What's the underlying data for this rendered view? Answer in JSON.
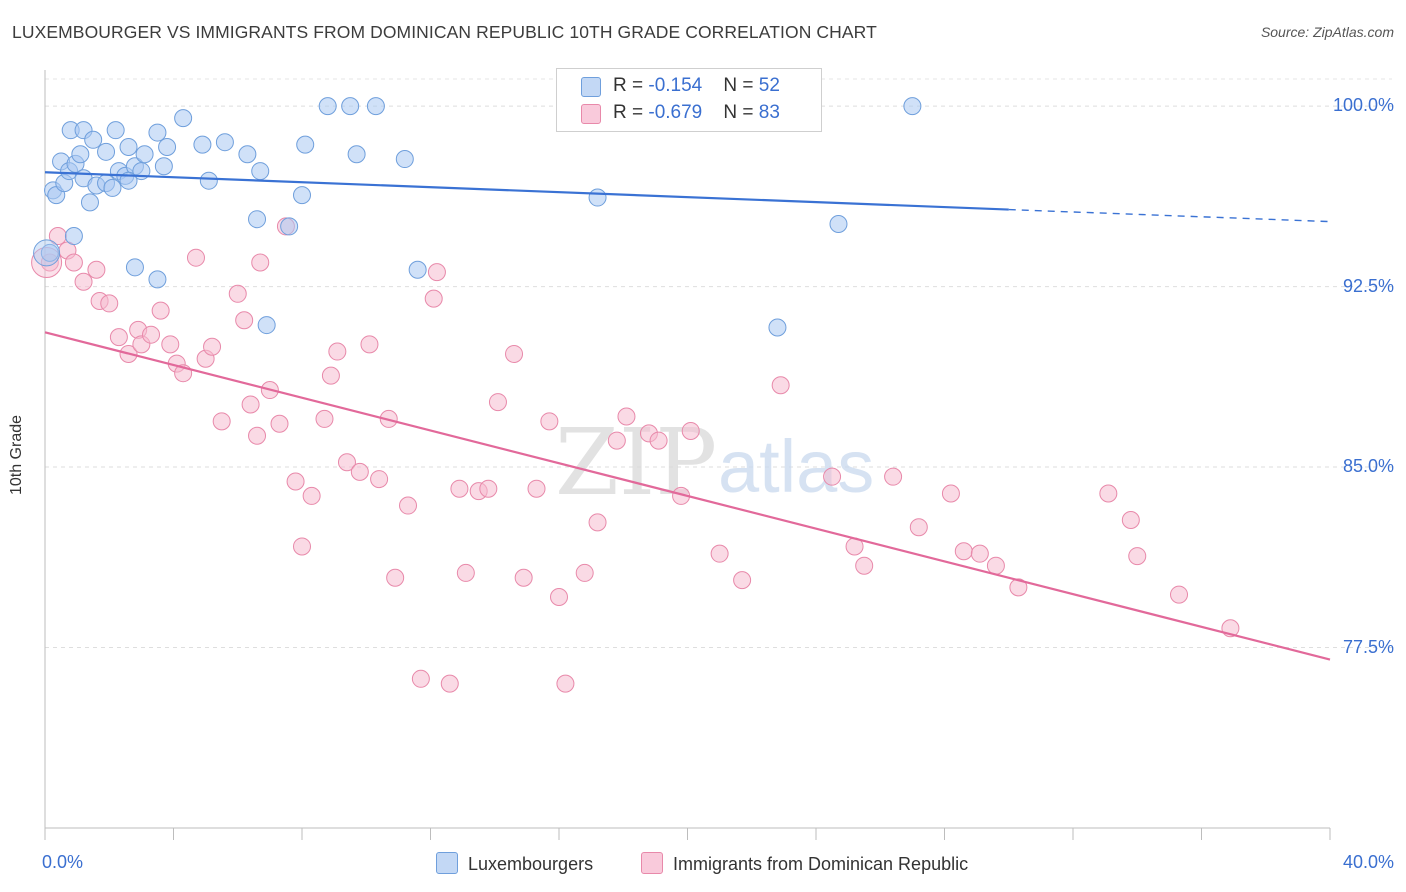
{
  "title": "LUXEMBOURGER VS IMMIGRANTS FROM DOMINICAN REPUBLIC 10TH GRADE CORRELATION CHART",
  "source": "Source: ZipAtlas.com",
  "watermark": {
    "zip": "ZIP",
    "atlas": "atlas"
  },
  "legend_top": {
    "rows": [
      {
        "r_label": "R = ",
        "r_value": "-0.154",
        "n_label": "N = ",
        "n_value": "52"
      },
      {
        "r_label": "R = ",
        "r_value": "-0.679",
        "n_label": "N = ",
        "n_value": "83"
      }
    ]
  },
  "bottom_legend": {
    "series1": "Luxembourgers",
    "series2": "Immigrants from Dominican Republic"
  },
  "colors": {
    "blue_fill": "#aac9f2",
    "blue_stroke": "#6f9fdc",
    "blue_line": "#3a72d4",
    "pink_fill": "#f6bcd0",
    "pink_stroke": "#e889aa",
    "pink_line": "#e2699a",
    "accent_text": "#3a6fd0"
  },
  "chart_data": {
    "type": "scatter",
    "title": "LUXEMBOURGER VS IMMIGRANTS FROM DOMINICAN REPUBLIC 10TH GRADE CORRELATION CHART",
    "xlabel": "",
    "ylabel": "10th Grade",
    "xlim": [
      0,
      40
    ],
    "ylim": [
      70,
      101.5
    ],
    "x_tick_labels": [
      "0.0%",
      "40.0%"
    ],
    "y_ticks": [
      77.5,
      85.0,
      92.5,
      100.0
    ],
    "y_tick_labels": [
      "77.5%",
      "85.0%",
      "92.5%",
      "100.0%"
    ],
    "grid": true,
    "legend_position": "top-center",
    "series": [
      {
        "name": "Luxembourgers",
        "R": -0.154,
        "N": 52,
        "trend": {
          "x0": 0,
          "y0": 97.25,
          "x1": 30,
          "y1": 95.7,
          "dash_to_x": 40,
          "dash_to_y": 95.2
        },
        "points": [
          [
            0.25,
            96.5
          ],
          [
            0.35,
            96.3
          ],
          [
            0.5,
            97.7
          ],
          [
            0.6,
            96.8
          ],
          [
            0.75,
            97.3
          ],
          [
            0.95,
            97.6
          ],
          [
            1.1,
            98.0
          ],
          [
            1.2,
            97.0
          ],
          [
            1.4,
            96.0
          ],
          [
            1.6,
            96.7
          ],
          [
            1.9,
            96.8
          ],
          [
            2.1,
            96.6
          ],
          [
            2.3,
            97.3
          ],
          [
            2.5,
            97.1
          ],
          [
            2.8,
            97.5
          ],
          [
            3.0,
            97.3
          ],
          [
            0.8,
            99.0
          ],
          [
            1.2,
            99.0
          ],
          [
            1.5,
            98.6
          ],
          [
            1.9,
            98.1
          ],
          [
            2.2,
            99.0
          ],
          [
            2.6,
            98.3
          ],
          [
            3.1,
            98.0
          ],
          [
            3.5,
            98.9
          ],
          [
            3.8,
            98.3
          ],
          [
            4.3,
            99.5
          ],
          [
            5.1,
            96.9
          ],
          [
            6.7,
            97.3
          ],
          [
            8.0,
            96.3
          ],
          [
            9.7,
            98.0
          ],
          [
            8.8,
            100.0
          ],
          [
            9.5,
            100.0
          ],
          [
            10.3,
            100.0
          ],
          [
            11.2,
            97.8
          ],
          [
            27.0,
            100.0
          ],
          [
            0.15,
            93.9
          ],
          [
            0.9,
            94.6
          ],
          [
            2.8,
            93.3
          ],
          [
            3.5,
            92.8
          ],
          [
            6.6,
            95.3
          ],
          [
            7.6,
            95.0
          ],
          [
            11.6,
            93.2
          ],
          [
            17.2,
            96.2
          ],
          [
            22.8,
            90.8
          ],
          [
            24.7,
            95.1
          ],
          [
            6.9,
            90.9
          ],
          [
            4.9,
            98.4
          ],
          [
            5.6,
            98.5
          ],
          [
            8.1,
            98.4
          ],
          [
            6.3,
            98.0
          ],
          [
            2.6,
            96.9
          ],
          [
            3.7,
            97.5
          ]
        ]
      },
      {
        "name": "Immigrants from Dominican Republic",
        "R": -0.679,
        "N": 83,
        "trend": {
          "x0": 0,
          "y0": 90.6,
          "x1": 40,
          "y1": 77.0
        },
        "points": [
          [
            0.15,
            93.5
          ],
          [
            0.4,
            94.6
          ],
          [
            0.7,
            94.0
          ],
          [
            0.9,
            93.5
          ],
          [
            1.2,
            92.7
          ],
          [
            1.6,
            93.2
          ],
          [
            1.7,
            91.9
          ],
          [
            2.0,
            91.8
          ],
          [
            2.3,
            90.4
          ],
          [
            2.6,
            89.7
          ],
          [
            2.9,
            90.7
          ],
          [
            3.0,
            90.1
          ],
          [
            3.3,
            90.5
          ],
          [
            3.6,
            91.5
          ],
          [
            3.9,
            90.1
          ],
          [
            4.1,
            89.3
          ],
          [
            4.3,
            88.9
          ],
          [
            4.7,
            93.7
          ],
          [
            5.0,
            89.5
          ],
          [
            5.2,
            90.0
          ],
          [
            5.5,
            86.9
          ],
          [
            6.0,
            92.2
          ],
          [
            6.2,
            91.1
          ],
          [
            6.4,
            87.6
          ],
          [
            6.6,
            86.3
          ],
          [
            6.7,
            93.5
          ],
          [
            7.0,
            88.2
          ],
          [
            7.3,
            86.8
          ],
          [
            7.5,
            95.0
          ],
          [
            7.8,
            84.4
          ],
          [
            8.0,
            81.7
          ],
          [
            8.3,
            83.8
          ],
          [
            8.7,
            87.0
          ],
          [
            8.9,
            88.8
          ],
          [
            9.1,
            89.8
          ],
          [
            9.4,
            85.2
          ],
          [
            9.8,
            84.8
          ],
          [
            10.1,
            90.1
          ],
          [
            10.4,
            84.5
          ],
          [
            10.7,
            87.0
          ],
          [
            10.9,
            80.4
          ],
          [
            11.3,
            83.4
          ],
          [
            11.7,
            76.2
          ],
          [
            12.1,
            92.0
          ],
          [
            12.2,
            93.1
          ],
          [
            12.6,
            76.0
          ],
          [
            12.9,
            84.1
          ],
          [
            13.1,
            80.6
          ],
          [
            13.5,
            84.0
          ],
          [
            13.8,
            84.1
          ],
          [
            14.1,
            87.7
          ],
          [
            14.6,
            89.7
          ],
          [
            14.9,
            80.4
          ],
          [
            15.3,
            84.1
          ],
          [
            15.7,
            86.9
          ],
          [
            16.0,
            79.6
          ],
          [
            16.2,
            76.0
          ],
          [
            16.8,
            80.6
          ],
          [
            17.2,
            82.7
          ],
          [
            17.8,
            86.1
          ],
          [
            18.1,
            87.1
          ],
          [
            18.8,
            86.4
          ],
          [
            19.1,
            86.1
          ],
          [
            19.8,
            83.8
          ],
          [
            20.1,
            86.5
          ],
          [
            21.0,
            81.4
          ],
          [
            21.7,
            80.3
          ],
          [
            22.9,
            88.4
          ],
          [
            24.5,
            84.6
          ],
          [
            25.2,
            81.7
          ],
          [
            25.5,
            80.9
          ],
          [
            26.4,
            84.6
          ],
          [
            27.2,
            82.5
          ],
          [
            28.2,
            83.9
          ],
          [
            28.6,
            81.5
          ],
          [
            29.1,
            81.4
          ],
          [
            29.6,
            80.9
          ],
          [
            30.3,
            80.0
          ],
          [
            33.1,
            83.9
          ],
          [
            33.8,
            82.8
          ],
          [
            34.0,
            81.3
          ],
          [
            35.3,
            79.7
          ],
          [
            36.9,
            78.3
          ]
        ]
      }
    ]
  }
}
